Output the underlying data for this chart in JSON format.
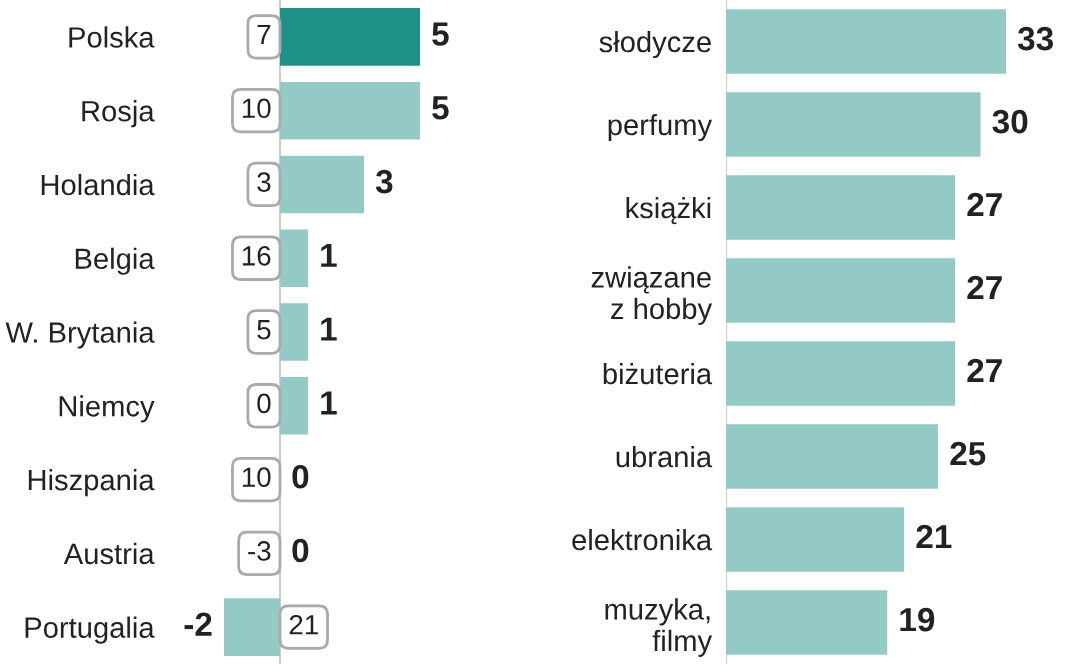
{
  "chart_data": [
    {
      "type": "bar",
      "orientation": "horizontal",
      "data_labels": true,
      "categories": [
        "Polska",
        "Rosja",
        "Holandia",
        "Belgia",
        "W. Brytania",
        "Niemcy",
        "Hiszpania",
        "Austria",
        "Portugalia"
      ],
      "values": [
        5,
        5,
        3,
        1,
        1,
        1,
        0,
        0,
        -2
      ],
      "colors": [
        "#1f9088",
        "#94cac6",
        "#94cac6",
        "#94cac6",
        "#94cac6",
        "#94cac6",
        "#94cac6",
        "#94cac6",
        "#94cac6"
      ],
      "annotations": [
        {
          "text": "7",
          "y": "Polska"
        },
        {
          "text": "10",
          "y": "Rosja"
        },
        {
          "text": "3",
          "y": "Holandia"
        },
        {
          "text": "16",
          "y": "Belgia"
        },
        {
          "text": "5",
          "y": "W. Brytania"
        },
        {
          "text": "0",
          "y": "Niemcy"
        },
        {
          "text": "10",
          "y": "Hiszpania"
        },
        {
          "text": "-3",
          "y": "Austria"
        },
        {
          "text": "21",
          "y": "Portugalia"
        }
      ]
    },
    {
      "type": "bar",
      "orientation": "horizontal",
      "data_labels": true,
      "categories": [
        "słodycze",
        "perfumy",
        "książki",
        "związane\nz hobby",
        "biżuteria",
        "ubrania",
        "elektronika",
        "muzyka,\nfilmy"
      ],
      "values": [
        33,
        30,
        27,
        27,
        27,
        25,
        21,
        19
      ],
      "color": "#94cac6"
    }
  ]
}
